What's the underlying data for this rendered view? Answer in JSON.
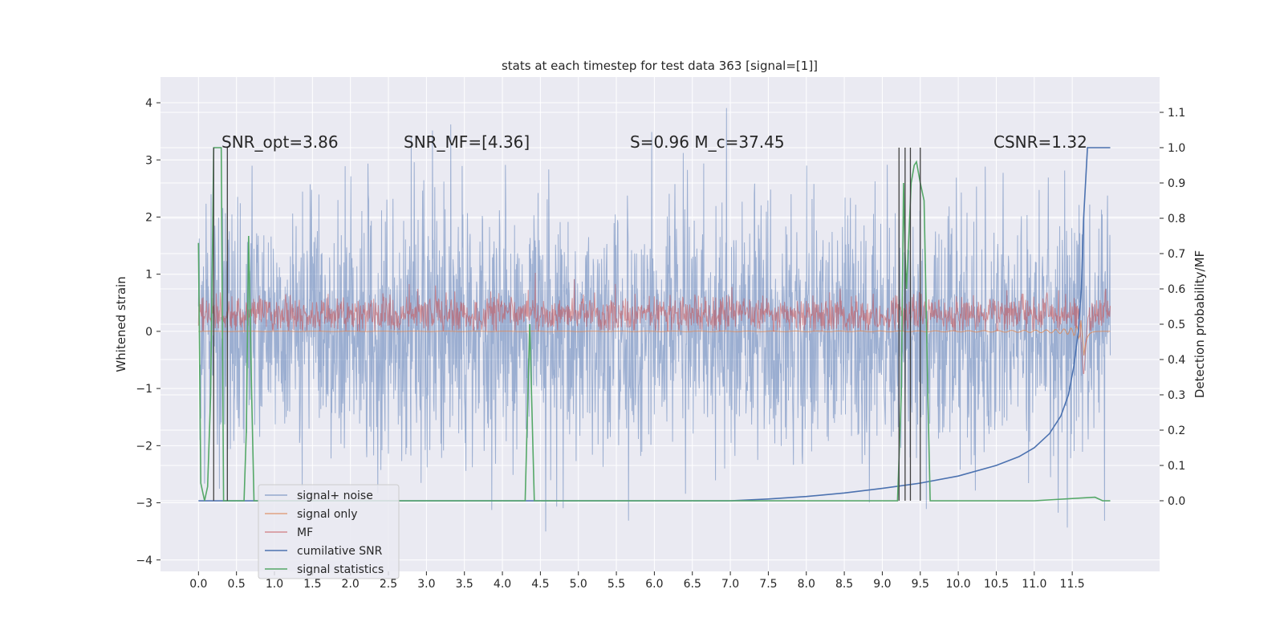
{
  "chart_data": {
    "type": "line",
    "title": "stats at each timestep for test data 363 [signal=[1]]",
    "xlabel": "",
    "ylabel_left": "Whitened strain",
    "ylabel_right": "Detection probability/MF",
    "xlim": [
      -0.5,
      12.65
    ],
    "ylim_left": [
      -4.2,
      4.45
    ],
    "ylim_right": [
      -0.2,
      1.2
    ],
    "x_ticks": [
      0.0,
      0.5,
      1.0,
      1.5,
      2.0,
      2.5,
      3.0,
      3.5,
      4.0,
      4.5,
      5.0,
      5.5,
      6.0,
      6.5,
      7.0,
      7.5,
      8.0,
      8.5,
      9.0,
      9.5,
      10.0,
      10.5,
      11.0,
      11.5
    ],
    "x_tick_labels": [
      "0.0",
      "0.5",
      "1.0",
      "1.5",
      "2.0",
      "2.5",
      "3.0",
      "3.5",
      "4.0",
      "4.5",
      "5.0",
      "5.5",
      "6.0",
      "6.5",
      "7.0",
      "7.5",
      "8.0",
      "8.5",
      "9.0",
      "9.5",
      "10.0",
      "10.5",
      "11.0",
      "11.5"
    ],
    "y_left_ticks": [
      -4,
      -3,
      -2,
      -1,
      0,
      1,
      2,
      3,
      4
    ],
    "y_left_tick_labels": [
      "−4",
      "−3",
      "−2",
      "−1",
      "0",
      "1",
      "2",
      "3",
      "4"
    ],
    "y_right_ticks": [
      0.0,
      0.1,
      0.2,
      0.3,
      0.4,
      0.5,
      0.6,
      0.7,
      0.8,
      0.9,
      1.0,
      1.1
    ],
    "y_right_tick_labels": [
      "0.0",
      "0.1",
      "0.2",
      "0.3",
      "0.4",
      "0.5",
      "0.6",
      "0.7",
      "0.8",
      "0.9",
      "1.0",
      "1.1"
    ],
    "grid": true,
    "legend_position": "lower-left",
    "annotations": [
      {
        "text": "SNR_opt=3.86",
        "x": 0.2,
        "y": 3.2
      },
      {
        "text": "SNR_MF=[4.36]",
        "x": 2.6,
        "y": 3.2
      },
      {
        "text": "S=0.96   M_c=37.45",
        "x": 5.6,
        "y": 3.2
      },
      {
        "text": "CSNR=1.32",
        "x": 10.4,
        "y": 3.2
      }
    ],
    "series": [
      {
        "name": "signal+ noise",
        "color": "#4c72b0",
        "axis": "left",
        "kind": "noise",
        "x_range": [
          0.0,
          12.0
        ],
        "amplitude": 1.1,
        "peak_range": [
          -3.5,
          4.1
        ]
      },
      {
        "name": "signal only",
        "color": "#dd8452",
        "axis": "left",
        "kind": "chirp",
        "x_range": [
          0.0,
          12.0
        ],
        "peak": 0.9,
        "peak_x": 11.65
      },
      {
        "name": "MF",
        "color": "#c44e52",
        "axis": "left",
        "kind": "mf",
        "x_range": [
          0.0,
          12.0
        ],
        "baseline": 0.3,
        "spike_x": 11.65,
        "spike_low": -0.8
      },
      {
        "name": "cumilative SNR",
        "color": "#4c72b0",
        "axis": "right",
        "x": [
          0.0,
          7.0,
          7.5,
          8.0,
          8.5,
          9.0,
          9.5,
          10.0,
          10.5,
          10.8,
          11.0,
          11.2,
          11.35,
          11.45,
          11.52,
          11.58,
          11.62,
          11.65,
          11.7,
          12.0
        ],
        "y": [
          0.0,
          0.0,
          0.005,
          0.012,
          0.022,
          0.035,
          0.05,
          0.07,
          0.1,
          0.125,
          0.15,
          0.19,
          0.24,
          0.3,
          0.38,
          0.48,
          0.6,
          0.8,
          1.0,
          1.0
        ]
      },
      {
        "name": "signal statistics",
        "color": "#55a868",
        "axis": "right",
        "x": [
          0.0,
          0.03,
          0.08,
          0.12,
          0.16,
          0.2,
          0.22,
          0.26,
          0.3,
          0.33,
          0.36,
          0.38,
          0.4,
          0.42,
          0.5,
          0.6,
          0.63,
          0.66,
          0.7,
          0.73,
          0.76,
          0.8,
          1.0,
          2.0,
          3.0,
          4.0,
          4.3,
          4.36,
          4.42,
          4.48,
          4.55,
          5.0,
          6.0,
          7.0,
          8.0,
          9.0,
          9.2,
          9.25,
          9.28,
          9.3,
          9.32,
          9.36,
          9.38,
          9.42,
          9.45,
          9.5,
          9.55,
          9.6,
          9.63,
          9.66,
          9.7,
          10.0,
          11.0,
          11.8,
          11.9,
          12.0
        ],
        "y": [
          0.73,
          0.05,
          0.0,
          0.04,
          0.3,
          1.0,
          1.0,
          1.0,
          1.0,
          0.0,
          0.0,
          0.0,
          0.0,
          0.0,
          0.0,
          0.0,
          0.2,
          0.75,
          0.3,
          0.0,
          0.0,
          0.0,
          0.0,
          0.0,
          0.0,
          0.0,
          0.0,
          0.5,
          0.0,
          0.0,
          0.0,
          0.0,
          0.0,
          0.0,
          0.0,
          0.0,
          0.0,
          0.3,
          0.9,
          0.7,
          0.6,
          0.8,
          0.9,
          0.95,
          0.96,
          0.9,
          0.85,
          0.3,
          0.0,
          0.0,
          0.0,
          0.0,
          0.0,
          0.01,
          0.0,
          0.0
        ]
      }
    ],
    "vertical_lines": {
      "color": "#404040",
      "x": [
        0.2,
        0.38,
        9.22,
        9.3,
        9.37,
        9.5
      ],
      "y_top_right": 1.0,
      "y_bottom_right": 0.0
    }
  }
}
